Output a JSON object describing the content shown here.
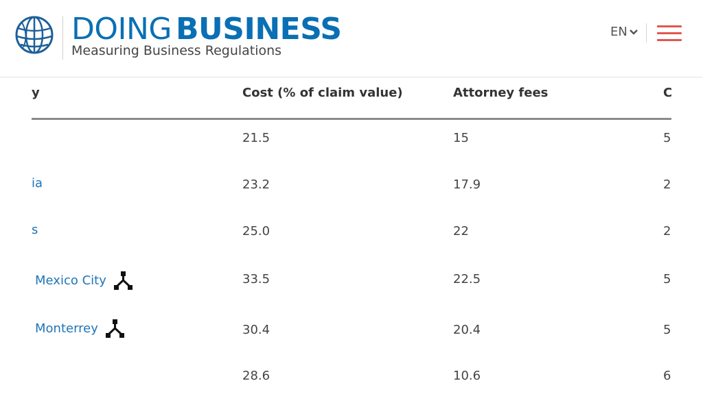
{
  "header": {
    "brand_light": "DOING",
    "brand_bold": "BUSINESS",
    "tagline": "Measuring Business Regulations",
    "language": "EN",
    "brand_color": "#0a6fb4",
    "menu_color": "#e2574c",
    "logo_icon": "world-bank-globe-icon",
    "menu_icon": "hamburger-menu-icon",
    "language_icon": "chevron-down-icon"
  },
  "table": {
    "columns": [
      "y",
      "Cost (% of claim value)",
      "Attorney fees",
      "C"
    ],
    "rows": [
      {
        "name": "",
        "cost": "21.5",
        "attorney": "15",
        "next": "5",
        "icon": false
      },
      {
        "name": "ia",
        "cost": "23.2",
        "attorney": "17.9",
        "next": "2",
        "icon": false
      },
      {
        "name": "s",
        "cost": "25.0",
        "attorney": "22",
        "next": "2",
        "icon": false
      },
      {
        "name": "Mexico City",
        "cost": "33.5",
        "attorney": "22.5",
        "next": "5",
        "icon": true
      },
      {
        "name": "Monterrey",
        "cost": "30.4",
        "attorney": "20.4",
        "next": "5",
        "icon": true
      },
      {
        "name": "",
        "cost": "28.6",
        "attorney": "10.6",
        "next": "6",
        "icon": false
      }
    ],
    "row_icon": "subnational-branch-icon",
    "link_color": "#1f75b8"
  }
}
